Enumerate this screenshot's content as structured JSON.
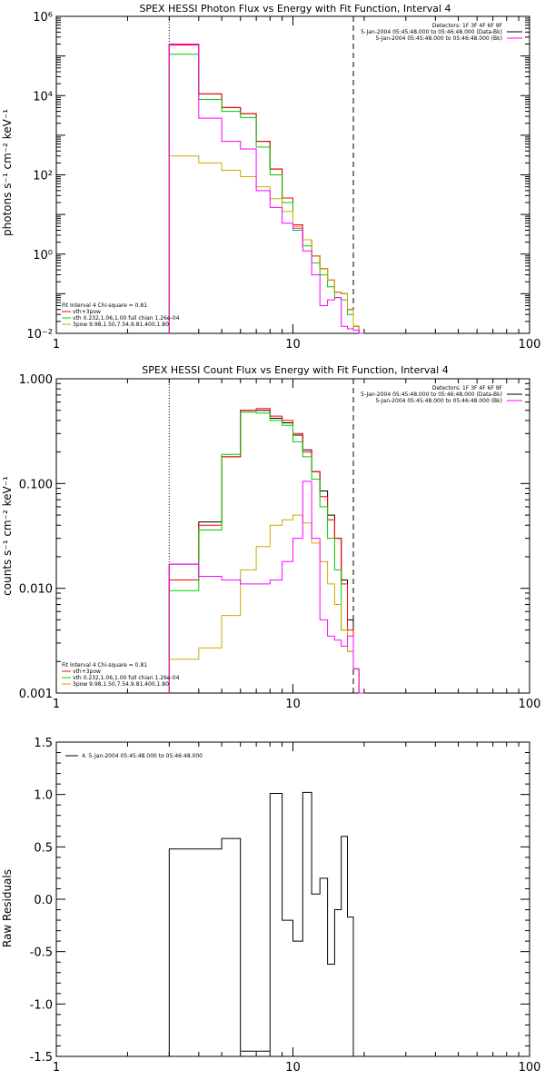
{
  "chart_data": [
    {
      "type": "line",
      "title": "SPEX HESSI Photon Flux vs Energy with Fit Function, Interval 4",
      "ylabel": "photons s⁻¹ cm⁻² keV⁻¹",
      "xscale": "log",
      "yscale": "log",
      "xlim": [
        1,
        100
      ],
      "ylim": [
        0.01,
        1000000
      ],
      "xticks": [
        1,
        10,
        100
      ],
      "xtick_labels": [
        "1",
        "10",
        "100"
      ],
      "yticks": [
        0.01,
        1,
        100,
        10000,
        1000000
      ],
      "ytick_labels": [
        "10⁻²",
        "10⁰",
        "10²",
        "10⁴",
        "10⁶"
      ],
      "vlines": [
        {
          "x": 3,
          "style": "dotted",
          "color": "#000000"
        },
        {
          "x": 18,
          "style": "dashed",
          "color": "#000000"
        }
      ],
      "legend_top_right": [
        {
          "text": "Detectors: 1F 3F 4F 6F 9F",
          "color": null
        },
        {
          "text": "5-Jan-2004 05:45:48.000 to 05:46:48.000 (Data-Bk)",
          "color": "#000000"
        },
        {
          "text": "5-Jan-2004 05:45:48.000 to 05:46:48.000 (Bk)",
          "color": "#ff00ff"
        }
      ],
      "legend_bottom_left": [
        {
          "text": "Fit Interval 4   Chi-square = 0.81",
          "color": null
        },
        {
          "text": "vth+3pow",
          "color": "#ff0000"
        },
        {
          "text": "vth 0.232,1.06,1.00  full chian 1.26e-04",
          "color": "#00cc00"
        },
        {
          "text": "3pow 9.98,1.50,7.54,9.81,400,1.80",
          "color": "#ccaa00"
        }
      ],
      "x_edges": [
        3,
        4,
        5,
        6,
        7,
        8,
        9,
        10,
        11,
        12,
        13,
        14,
        15,
        16,
        17,
        18,
        19,
        20
      ],
      "series": [
        {
          "name": "Data-Bk",
          "color": "#000000",
          "values": [
            200000,
            11000,
            5000,
            3500,
            700,
            140,
            26,
            5.5,
            2.3,
            0.9,
            0.43,
            0.22,
            0.11,
            0.1,
            0.04,
            0.015,
            0.005
          ]
        },
        {
          "name": "vth+3pow",
          "color": "#ff0000",
          "values": [
            190000,
            11000,
            5000,
            3500,
            700,
            140,
            26,
            5.5,
            2.3,
            0.9,
            0.43,
            0.22,
            0.11,
            0.1,
            0.04,
            0.015,
            0.005
          ]
        },
        {
          "name": "vth",
          "color": "#00cc00",
          "values": [
            110000,
            8000,
            4000,
            2800,
            500,
            100,
            20,
            4,
            1.6,
            0.6,
            0.3,
            0.15,
            0.08,
            0.07,
            0.03,
            0.012,
            0.004
          ]
        },
        {
          "name": "3pow",
          "color": "#ccaa00",
          "values": [
            300,
            200,
            130,
            90,
            50,
            25,
            12,
            5,
            2.3,
            0.9,
            0.43,
            0.22,
            0.11,
            0.1,
            0.04,
            0.015,
            0.005
          ]
        },
        {
          "name": "Bk",
          "color": "#ff00ff",
          "values": [
            200000,
            2700,
            700,
            450,
            40,
            15,
            6,
            4.5,
            1.2,
            0.3,
            0.05,
            0.07,
            0.08,
            0.015,
            0.013,
            0.012,
            0.01
          ]
        }
      ]
    },
    {
      "type": "line",
      "title": "SPEX HESSI Count Flux vs Energy with Fit Function, Interval 4",
      "ylabel": "counts s⁻¹ cm⁻² keV⁻¹",
      "xscale": "log",
      "yscale": "log",
      "xlim": [
        1,
        100
      ],
      "ylim": [
        0.001,
        1
      ],
      "xticks": [
        1,
        10,
        100
      ],
      "xtick_labels": [
        "1",
        "10",
        "100"
      ],
      "yticks": [
        0.001,
        0.01,
        0.1,
        1
      ],
      "ytick_labels": [
        "0.001",
        "0.010",
        "0.100",
        "1.000"
      ],
      "vlines": [
        {
          "x": 3,
          "style": "dotted",
          "color": "#000000"
        },
        {
          "x": 18,
          "style": "dashed",
          "color": "#000000"
        }
      ],
      "legend_top_right": [
        {
          "text": "Detectors: 1F 3F 4F 6F 9F",
          "color": null
        },
        {
          "text": "5-Jan-2004 05:45:48.000 to 05:46:48.000 (Data-Bk)",
          "color": "#000000"
        },
        {
          "text": "5-Jan-2004 05:45:48.000 to 05:46:48.000 (Bk)",
          "color": "#ff00ff"
        }
      ],
      "legend_bottom_left": [
        {
          "text": "Fit Interval 4   Chi-square = 0.81",
          "color": null
        },
        {
          "text": "vth+3pow",
          "color": "#ff0000"
        },
        {
          "text": "vth 0.232,1.06,1.00  full chian 1.26e-04",
          "color": "#00cc00"
        },
        {
          "text": "3pow 9.98,1.50,7.54,9.81,400,1.80",
          "color": "#ccaa00"
        }
      ],
      "x_edges": [
        3,
        4,
        5,
        6,
        7,
        8,
        9,
        10,
        11,
        12,
        13,
        14,
        15,
        16,
        17,
        18,
        19,
        20
      ],
      "series": [
        {
          "name": "Data-Bk",
          "color": "#000000",
          "values": [
            0.017,
            0.043,
            0.18,
            0.5,
            0.5,
            0.42,
            0.38,
            0.29,
            0.21,
            0.13,
            0.085,
            0.05,
            0.03,
            0.012,
            0.005,
            0.0017,
            0.001
          ]
        },
        {
          "name": "vth+3pow",
          "color": "#ff0000",
          "values": [
            0.012,
            0.04,
            0.18,
            0.5,
            0.52,
            0.44,
            0.4,
            0.3,
            0.2,
            0.13,
            0.075,
            0.045,
            0.03,
            0.011,
            0.004,
            0.0017,
            0.001
          ]
        },
        {
          "name": "vth",
          "color": "#00cc00",
          "values": [
            0.0095,
            0.036,
            0.19,
            0.48,
            0.47,
            0.4,
            0.36,
            0.25,
            0.18,
            0.11,
            0.06,
            0.03,
            0.015,
            0.004,
            0.0025,
            0.0017,
            0.001
          ]
        },
        {
          "name": "3pow",
          "color": "#ccaa00",
          "values": [
            0.0021,
            0.0027,
            0.0055,
            0.015,
            0.025,
            0.04,
            0.045,
            0.05,
            0.042,
            0.027,
            0.018,
            0.011,
            0.007,
            0.004,
            0.0025,
            0.0017,
            0.001
          ]
        },
        {
          "name": "Bk",
          "color": "#ff00ff",
          "values": [
            0.017,
            0.013,
            0.012,
            0.011,
            0.011,
            0.012,
            0.018,
            0.03,
            0.105,
            0.03,
            0.005,
            0.0035,
            0.0032,
            0.0028,
            0.0035,
            0.0017,
            0.001
          ]
        }
      ]
    },
    {
      "type": "line",
      "title": "",
      "ylabel": "Raw Residuals",
      "xscale": "log",
      "yscale": "linear",
      "xlim": [
        1,
        100
      ],
      "ylim": [
        -1.5,
        1.5
      ],
      "xticks": [
        1,
        10,
        100
      ],
      "xtick_labels": [
        "1",
        "10",
        "100"
      ],
      "yticks": [
        -1.5,
        -1.0,
        -0.5,
        0.0,
        0.5,
        1.0,
        1.5
      ],
      "ytick_labels": [
        "-1.5",
        "-1.0",
        "-0.5",
        "0.0",
        "0.5",
        "1.0",
        "1.5"
      ],
      "legend_top_left": [
        {
          "text": "4.  5-Jan-2004 05:45:48.000 to 05:46:48.000",
          "color": "#000000"
        }
      ],
      "x_edges": [
        3,
        4,
        5,
        6,
        7,
        8,
        9,
        10,
        11,
        12,
        13,
        14,
        15,
        16,
        17,
        18
      ],
      "series": [
        {
          "name": "",
          "color": "#000000",
          "values": [
            0.48,
            0.48,
            0.58,
            -1.45,
            -1.45,
            1.01,
            -0.2,
            -0.4,
            1.02,
            0.05,
            0.2,
            -0.62,
            -0.1,
            0.6,
            -0.17
          ]
        }
      ]
    }
  ]
}
